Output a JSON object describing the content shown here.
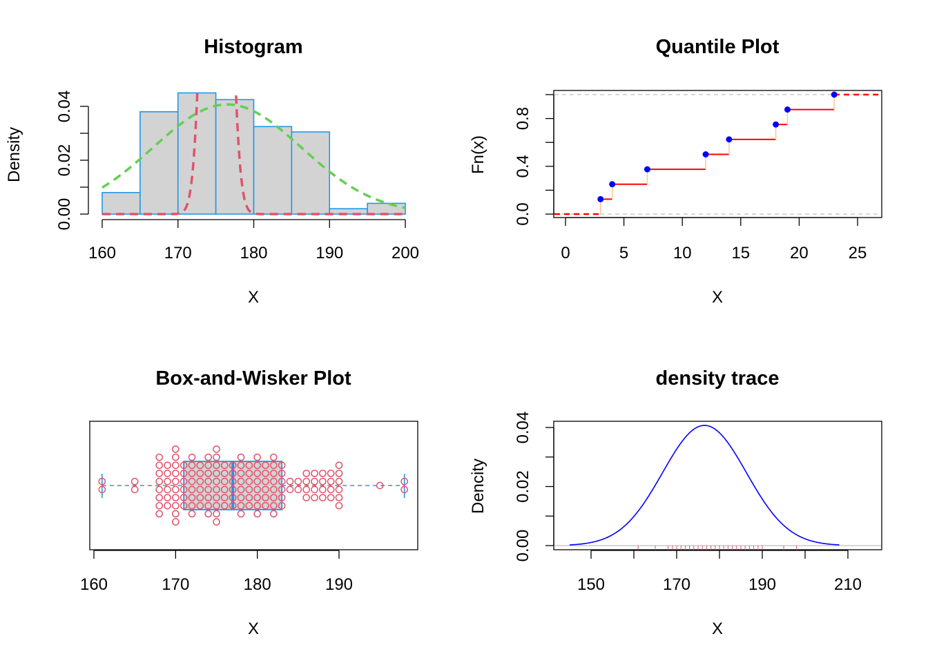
{
  "chart_data": [
    {
      "type": "histogram",
      "title": "Histogram",
      "xlabel": "X",
      "ylabel": "Density",
      "xlim": [
        160,
        200
      ],
      "ylim": [
        0,
        0.045
      ],
      "xticks": [
        "160",
        "170",
        "180",
        "190",
        "200"
      ],
      "yticks": [
        "0.00",
        "0.02",
        "0.04"
      ],
      "bins": [
        {
          "from": 160,
          "to": 165,
          "density": 0.008
        },
        {
          "from": 165,
          "to": 170,
          "density": 0.038
        },
        {
          "from": 170,
          "to": 175,
          "density": 0.045
        },
        {
          "from": 175,
          "to": 180,
          "density": 0.0425
        },
        {
          "from": 180,
          "to": 185,
          "density": 0.0325
        },
        {
          "from": 185,
          "to": 190,
          "density": 0.0305
        },
        {
          "from": 190,
          "to": 195,
          "density": 0.002
        },
        {
          "from": 195,
          "to": 200,
          "density": 0.004
        }
      ],
      "curves": [
        {
          "style": "dashed",
          "color": "#61D04F",
          "mean": 176.5,
          "sd": 9.8
        },
        {
          "style": "dashed",
          "color": "#DF536B",
          "mean": 175.1,
          "sd": 1.3
        }
      ],
      "colors": {
        "fill": "#D3D3D3",
        "border": "#2297E6"
      }
    },
    {
      "type": "step",
      "title": "Quantile Plot",
      "xlabel": "X",
      "ylabel": "Fn(x)",
      "xlim": [
        -1.5,
        27
      ],
      "ylim": [
        -0.02,
        1.02
      ],
      "xticks": [
        "0",
        "5",
        "10",
        "15",
        "20",
        "25"
      ],
      "yticks": [
        "0.0",
        "0.4",
        "0.8"
      ],
      "points": [
        {
          "x": 3,
          "y": 0.125
        },
        {
          "x": 4,
          "y": 0.25
        },
        {
          "x": 7,
          "y": 0.375
        },
        {
          "x": 12,
          "y": 0.5
        },
        {
          "x": 14,
          "y": 0.625
        },
        {
          "x": 18,
          "y": 0.75
        },
        {
          "x": 19,
          "y": 0.875
        },
        {
          "x": 23,
          "y": 1.0
        }
      ],
      "colors": {
        "step": "#FF0000",
        "riser": "#FFC896",
        "point": "#0000FF",
        "guide": "#BEBEBE"
      }
    },
    {
      "type": "box",
      "title": "Box-and-Wisker Plot",
      "xlabel": "X",
      "xlim": [
        160,
        198
      ],
      "xticks": [
        "160",
        "170",
        "180",
        "190"
      ],
      "box": {
        "whisker_low": 161,
        "q1": 171,
        "median": 177,
        "q3": 183,
        "whisker_high": 198
      },
      "dots": [
        [
          161,
          2
        ],
        [
          165,
          2
        ],
        [
          168,
          8
        ],
        [
          169,
          6
        ],
        [
          170,
          10
        ],
        [
          171,
          6
        ],
        [
          172,
          8
        ],
        [
          173,
          6
        ],
        [
          174,
          8
        ],
        [
          175,
          10
        ],
        [
          176,
          6
        ],
        [
          177,
          6
        ],
        [
          178,
          8
        ],
        [
          179,
          6
        ],
        [
          180,
          8
        ],
        [
          181,
          6
        ],
        [
          182,
          8
        ],
        [
          183,
          6
        ],
        [
          184,
          2
        ],
        [
          185,
          2
        ],
        [
          186,
          4
        ],
        [
          187,
          4
        ],
        [
          188,
          4
        ],
        [
          189,
          4
        ],
        [
          190,
          6
        ],
        [
          195,
          1
        ],
        [
          198,
          2
        ]
      ],
      "colors": {
        "fill": "#D3D3D3",
        "border": "#2297E6",
        "points": "#DF536B"
      }
    },
    {
      "type": "line",
      "title": "density trace",
      "xlabel": "X",
      "ylabel": "Dencity",
      "xlim": [
        141.5,
        216.5
      ],
      "ylim": [
        0,
        0.042
      ],
      "xticks": [
        "150",
        "170",
        "190",
        "210"
      ],
      "curve": {
        "mean": 176.5,
        "sd": 9.8,
        "from": 145,
        "to": 208
      },
      "rug": [
        161,
        165,
        168,
        169,
        170,
        171,
        172,
        173,
        174,
        175,
        176,
        177,
        178,
        179,
        180,
        181,
        182,
        183,
        184,
        185,
        186,
        187,
        188,
        189,
        190,
        195,
        198
      ],
      "yticks": [
        "0.00",
        "0.02",
        "0.04"
      ],
      "colors": {
        "line": "#0000FF",
        "rug": "#DF536B"
      }
    }
  ]
}
